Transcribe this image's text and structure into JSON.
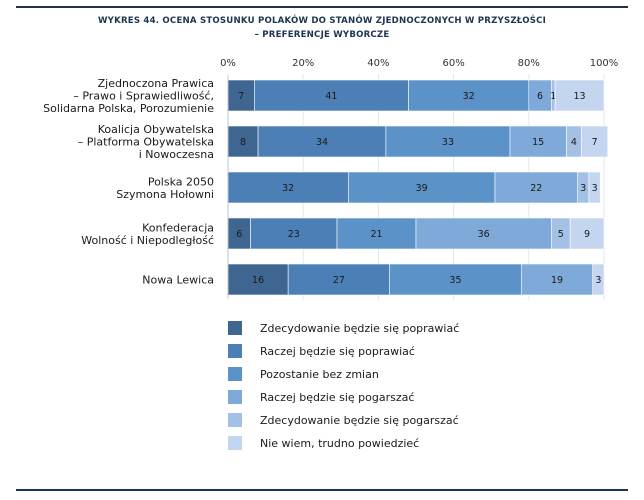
{
  "title_line1": "WYKRES 44. OCENA STOSUNKU POLAKÓW DO STANÓW ZJEDNOCZONYCH W PRZYSZŁOŚCI",
  "title_line2": "– PREFERENCJE WYBORCZE",
  "colors": [
    "#3f6690",
    "#4b7fb5",
    "#5b92c8",
    "#7ea9d9",
    "#a3c1e5",
    "#c4d6ef"
  ],
  "chart_data": {
    "type": "bar",
    "orientation": "horizontal",
    "stacked": true,
    "xlim": [
      0,
      100
    ],
    "ticks": [
      "0%",
      "20%",
      "40%",
      "60%",
      "80%",
      "100%"
    ],
    "categories": [
      [
        "Zjednoczona Prawica",
        "– Prawo i Sprawiedliwość,",
        "Solidarna Polska, Porozumienie"
      ],
      [
        "Koalicja Obywatelska",
        "– Platforma Obywatelska",
        "i Nowoczesna"
      ],
      [
        "Polska 2050",
        "Szymona Hołowni"
      ],
      [
        "Konfederacja",
        "Wolność i Niepodległość"
      ],
      [
        "Nowa Lewica"
      ]
    ],
    "series": [
      {
        "name": "Zdecydowanie będzie się poprawiać",
        "values": [
          7,
          8,
          0,
          6,
          16
        ]
      },
      {
        "name": "Raczej będzie się poprawiać",
        "values": [
          41,
          34,
          32,
          23,
          27
        ]
      },
      {
        "name": "Pozostanie bez zmian",
        "values": [
          32,
          33,
          39,
          21,
          35
        ]
      },
      {
        "name": "Raczej będzie się pogarszać",
        "values": [
          6,
          15,
          22,
          36,
          19
        ]
      },
      {
        "name": "Zdecydowanie będzie się pogarszać",
        "values": [
          1,
          4,
          3,
          5,
          0
        ]
      },
      {
        "name": "Nie wiem, trudno powiedzieć",
        "values": [
          13,
          7,
          3,
          9,
          3
        ]
      }
    ],
    "legend_position": "bottom"
  }
}
